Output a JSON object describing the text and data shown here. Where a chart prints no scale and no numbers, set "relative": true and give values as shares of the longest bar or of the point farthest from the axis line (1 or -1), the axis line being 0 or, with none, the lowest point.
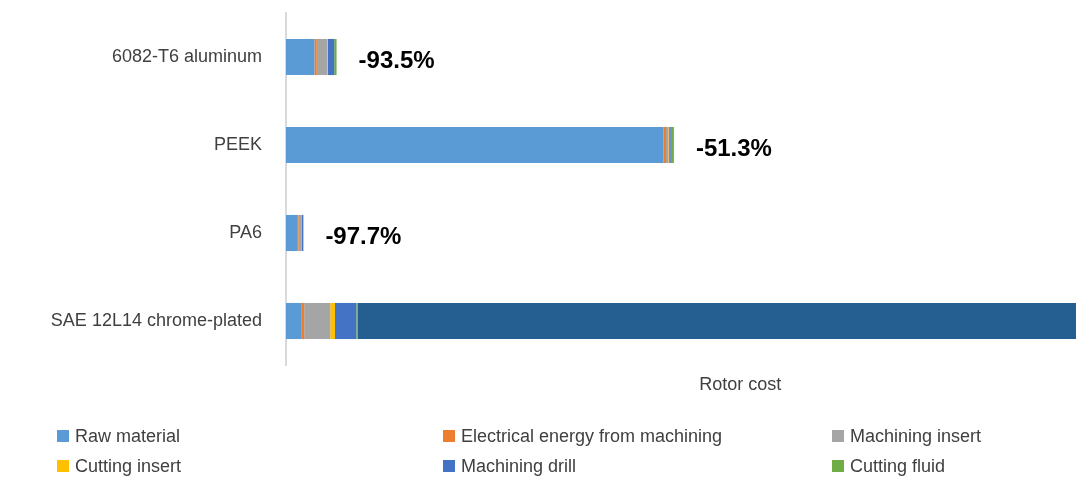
{
  "chart_data": {
    "type": "bar",
    "orientation": "horizontal",
    "stacked": true,
    "relative": true,
    "xlabel": "Rotor cost",
    "legend": "bottom",
    "categories": [
      "6082-T6 aluminum",
      "PEEK",
      "PA6",
      "SAE 12L14 chrome-plated"
    ],
    "series": [
      {
        "name": "Raw material",
        "color": "#5b9bd5",
        "values": [
          0.036,
          0.478,
          0.014,
          0.02
        ]
      },
      {
        "name": "Electrical energy from machining",
        "color": "#ed7d31",
        "values": [
          0.003,
          0.003,
          0.002,
          0.003
        ]
      },
      {
        "name": "Machining insert",
        "color": "#a5a5a5",
        "values": [
          0.013,
          0.003,
          0.004,
          0.033
        ]
      },
      {
        "name": "Cutting insert",
        "color": "#ffc000",
        "values": [
          0.001,
          0.001,
          0,
          0.006
        ]
      },
      {
        "name": "Machining drill",
        "color": "#4472c4",
        "values": [
          0.008,
          0.002,
          0.002,
          0.027
        ]
      },
      {
        "name": "Cutting fluid",
        "color": "#70ad47",
        "values": [
          0.003,
          0.004,
          0,
          0.002
        ]
      },
      {
        "color": "#255e91",
        "values": [
          0,
          0,
          0,
          0.909
        ]
      }
    ],
    "annotations": [
      {
        "text": "-93.5%",
        "x": 0.064,
        "y": "6082-T6 aluminum"
      },
      {
        "text": "-51.3%",
        "x": 0.491,
        "y": "PEEK"
      },
      {
        "text": "-97.7%",
        "x": 0.022,
        "y": "PA6"
      }
    ]
  }
}
